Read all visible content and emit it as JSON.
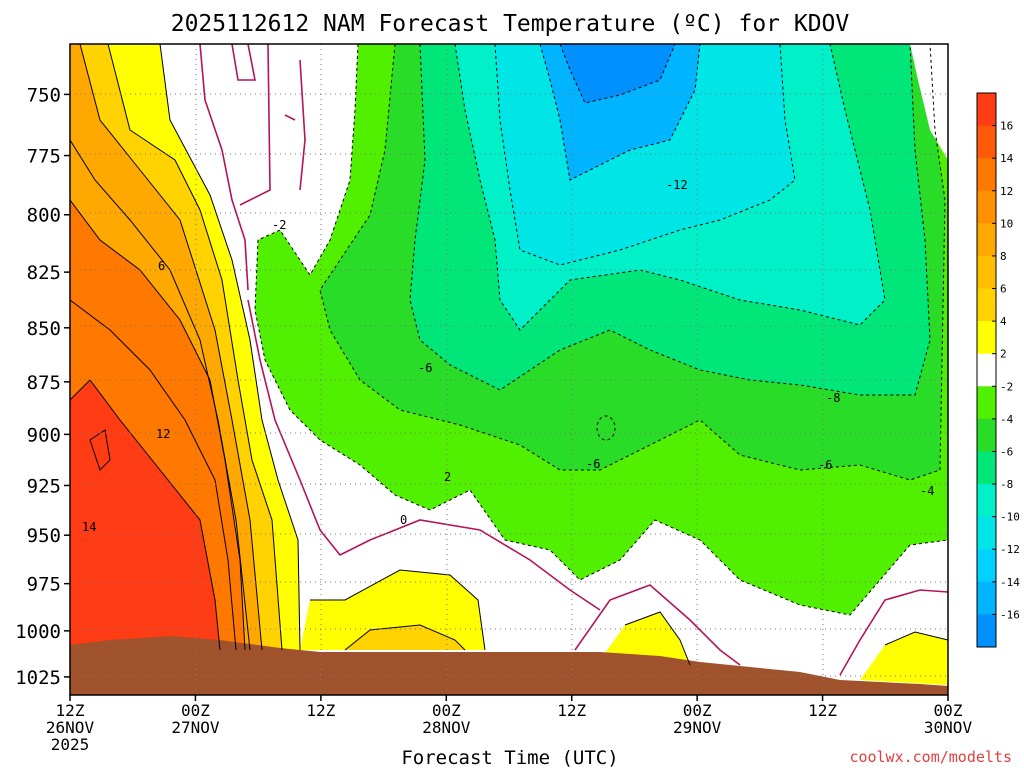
{
  "chart_data": {
    "type": "heatmap",
    "title": "2025112612 NAM Forecast Temperature (ºC) for KDOV",
    "xlabel": "Forecast Time (UTC)",
    "ylabel": "",
    "credit": "coolwx.com/modelts",
    "x_range": [
      0,
      84
    ],
    "x_unit": "forecast hour",
    "ylim": [
      1035,
      730
    ],
    "y_scale": "log-pressure",
    "y_unit": "hPa",
    "y_ticks": [
      "750",
      "775",
      "800",
      "825",
      "850",
      "875",
      "900",
      "925",
      "950",
      "975",
      "1000",
      "1025"
    ],
    "y_tick_values": [
      750,
      775,
      800,
      825,
      850,
      875,
      900,
      925,
      950,
      975,
      1000,
      1025
    ],
    "x_ticks": [
      {
        "hour": 0,
        "time": "12Z",
        "date": "26NOV",
        "year": "2025"
      },
      {
        "hour": 12,
        "time": "00Z",
        "date": "27NOV",
        "year": ""
      },
      {
        "hour": 24,
        "time": "12Z",
        "date": "",
        "year": ""
      },
      {
        "hour": 36,
        "time": "00Z",
        "date": "28NOV",
        "year": ""
      },
      {
        "hour": 48,
        "time": "12Z",
        "date": "",
        "year": ""
      },
      {
        "hour": 60,
        "time": "00Z",
        "date": "29NOV",
        "year": ""
      },
      {
        "hour": 72,
        "time": "12Z",
        "date": "",
        "year": ""
      },
      {
        "hour": 84,
        "time": "00Z",
        "date": "30NOV",
        "year": ""
      }
    ],
    "colorbar": {
      "labels": [
        "16",
        "14",
        "12",
        "10",
        "8",
        "6",
        "4",
        "2",
        "-2",
        "-4",
        "-6",
        "-8",
        "-10",
        "-12",
        "-14",
        "-16"
      ],
      "colors": [
        "#ff3c14",
        "#ff5a0a",
        "#ff7800",
        "#ff9100",
        "#ffa800",
        "#ffbe00",
        "#ffd200",
        "#ffff00",
        "#ffffff",
        "#50f000",
        "#28dc28",
        "#00e678",
        "#00f0c8",
        "#00e6e6",
        "#00d2ff",
        "#00b4ff",
        "#0090ff"
      ]
    },
    "contour_labels": [
      "-2",
      "6",
      "12",
      "14",
      "-6",
      "2",
      "0",
      "-12",
      "-6",
      "-8",
      "-6",
      "-4"
    ],
    "terrain_color": "#a0522d",
    "zero_line_color": "#b4145a"
  }
}
